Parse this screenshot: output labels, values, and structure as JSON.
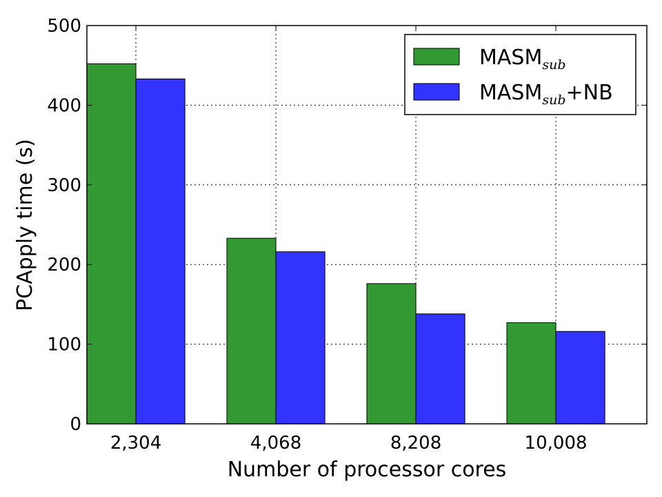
{
  "chart_data": {
    "type": "bar",
    "title": "",
    "xlabel": "Number of processor cores",
    "ylabel": "PCApply time (s)",
    "categories": [
      "2,304",
      "4,068",
      "8,208",
      "10,008"
    ],
    "ylim": [
      0,
      500
    ],
    "yticks": [
      0,
      100,
      200,
      300,
      400,
      500
    ],
    "grid": true,
    "legend_position": "top-right",
    "series": [
      {
        "name": "MASM",
        "name_sub": "sub",
        "name_suffix": "",
        "color": "#339933",
        "values": [
          452,
          233,
          176,
          127
        ]
      },
      {
        "name": "MASM",
        "name_sub": "sub",
        "name_suffix": "+NB",
        "color": "#3333ff",
        "values": [
          433,
          216,
          138,
          116
        ]
      }
    ]
  }
}
